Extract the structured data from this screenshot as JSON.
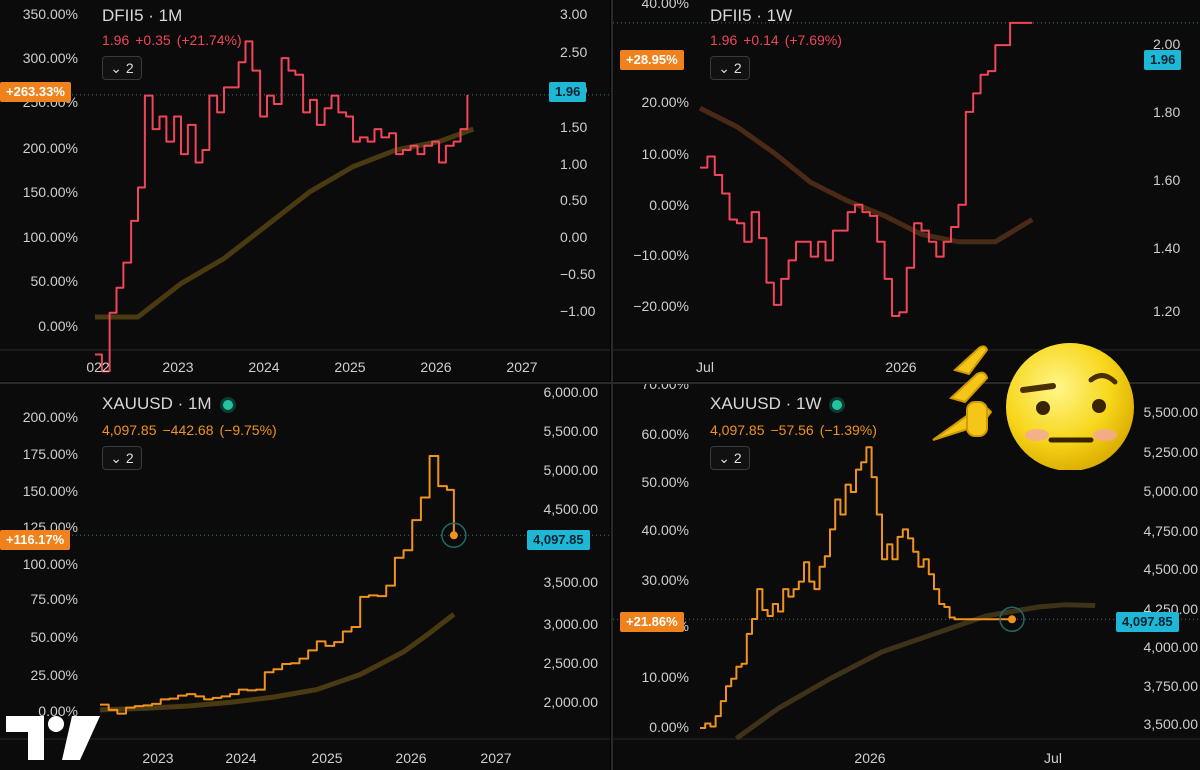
{
  "panels": [
    {
      "id": "dfii5-1m",
      "title": "DFII5 · 1M",
      "quote": {
        "last": "1.96",
        "change": "+0.35",
        "change_pct": "(+21.74%)",
        "color": "#f0455a"
      },
      "compare_button": "2",
      "live_dot": false,
      "pct_tag": "+263.33%",
      "price_tag": "1.96",
      "left_ticks": [
        "350.00%",
        "300.00%",
        "250.00%",
        "200.00%",
        "150.00%",
        "100.00%",
        "50.00%",
        "0.00%"
      ],
      "right_ticks": [
        "3.00",
        "2.50",
        "2.00",
        "1.50",
        "1.00",
        "0.50",
        "0.00",
        "−0.50",
        "−1.00"
      ],
      "x_ticks": [
        "022",
        "2023",
        "2024",
        "2025",
        "2026",
        "2027"
      ],
      "chart_data": {
        "type": "line",
        "y_axis_right": {
          "min": -1.0,
          "max": 3.0
        },
        "series": [
          {
            "color": "#f0455a",
            "shape": "step",
            "x": [
              2022.0,
              2022.08,
              2022.17,
              2022.25,
              2022.33,
              2022.42,
              2022.5,
              2022.58,
              2022.67,
              2022.75,
              2022.83,
              2022.92,
              2023.0,
              2023.08,
              2023.17,
              2023.25,
              2023.33,
              2023.42,
              2023.5,
              2023.58,
              2023.67,
              2023.75,
              2023.83,
              2023.92,
              2024.0,
              2024.08,
              2024.17,
              2024.25,
              2024.33,
              2024.42,
              2024.5,
              2024.58,
              2024.67,
              2024.75,
              2024.83,
              2024.92,
              2025.0,
              2025.08,
              2025.17,
              2025.25,
              2025.33,
              2025.42,
              2025.5,
              2025.58,
              2025.67,
              2025.75,
              2025.83,
              2025.92,
              2026.0,
              2026.08,
              2026.17,
              2026.25,
              2026.33
            ],
            "y": [
              -1.15,
              -1.35,
              -0.65,
              -0.35,
              -0.05,
              0.45,
              0.85,
              1.95,
              1.55,
              1.7,
              1.4,
              1.7,
              1.25,
              1.6,
              1.15,
              1.3,
              1.95,
              1.75,
              2.05,
              2.05,
              2.35,
              2.6,
              2.25,
              1.7,
              1.95,
              1.85,
              2.4,
              2.25,
              2.2,
              1.75,
              1.9,
              1.6,
              1.8,
              1.95,
              1.75,
              1.7,
              1.4,
              1.45,
              1.4,
              1.55,
              1.45,
              1.5,
              1.25,
              1.3,
              1.35,
              1.25,
              1.35,
              1.4,
              1.15,
              1.35,
              1.4,
              1.55,
              1.96
            ]
          },
          {
            "color": "#4a3a12",
            "shape": "smooth",
            "x": [
              2022.0,
              2022.5,
              2023.0,
              2023.5,
              2024.0,
              2024.5,
              2025.0,
              2025.5,
              2026.0,
              2026.4
            ],
            "y": [
              -0.7,
              -0.7,
              -0.3,
              0.0,
              0.4,
              0.8,
              1.1,
              1.3,
              1.4,
              1.55
            ]
          }
        ]
      }
    },
    {
      "id": "dfii5-1w",
      "title": "DFII5 · 1W",
      "quote": {
        "last": "1.96",
        "change": "+0.14",
        "change_pct": "(+7.69%)",
        "color": "#f0455a"
      },
      "compare_button": "2",
      "live_dot": false,
      "pct_tag": "+28.95%",
      "price_tag": "1.96",
      "left_ticks": [
        "40.00%",
        "20.00%",
        "10.00%",
        "0.00%",
        "−10.00%",
        "−20.00%"
      ],
      "right_ticks": [
        "2.00",
        "1.80",
        "1.60",
        "1.40",
        "1.20"
      ],
      "x_ticks": [
        "Jul",
        "2026"
      ],
      "chart_data": {
        "type": "line",
        "y_axis_right": {
          "min": 1.1,
          "max": 2.0
        },
        "series": [
          {
            "color": "#f0455a",
            "shape": "step",
            "x": [
              0,
              2,
              4,
              6,
              8,
              10,
              12,
              14,
              16,
              18,
              20,
              22,
              24,
              26,
              28,
              30,
              32,
              34,
              36,
              38,
              40,
              42,
              44,
              46,
              48,
              50,
              52,
              54,
              56,
              58,
              60,
              62,
              64,
              66,
              68,
              70,
              72,
              74,
              76,
              78,
              80,
              82,
              84,
              86,
              88,
              90
            ],
            "y": [
              1.57,
              1.6,
              1.55,
              1.5,
              1.43,
              1.42,
              1.37,
              1.45,
              1.38,
              1.26,
              1.2,
              1.27,
              1.32,
              1.37,
              1.37,
              1.33,
              1.37,
              1.32,
              1.4,
              1.4,
              1.45,
              1.47,
              1.45,
              1.44,
              1.37,
              1.27,
              1.17,
              1.18,
              1.3,
              1.42,
              1.4,
              1.37,
              1.33,
              1.37,
              1.41,
              1.47,
              1.72,
              1.77,
              1.82,
              1.83,
              1.9,
              1.9,
              1.96,
              1.96,
              1.96,
              1.96
            ]
          },
          {
            "color": "#4a2a16",
            "shape": "smooth",
            "x": [
              0,
              10,
              20,
              30,
              40,
              50,
              60,
              70,
              80,
              90
            ],
            "y": [
              1.73,
              1.68,
              1.61,
              1.53,
              1.48,
              1.44,
              1.39,
              1.37,
              1.37,
              1.43
            ]
          }
        ]
      }
    },
    {
      "id": "xauusd-1m",
      "title": "XAUUSD · 1M",
      "quote": {
        "last": "4,097.85",
        "change": "−442.68",
        "change_pct": "(−9.75%)",
        "color": "#f0921e"
      },
      "compare_button": "2",
      "live_dot": true,
      "pct_tag": "+116.17%",
      "price_tag": "4,097.85",
      "left_ticks": [
        "200.00%",
        "175.00%",
        "150.00%",
        "125.00%",
        "100.00%",
        "75.00%",
        "50.00%",
        "25.00%",
        "0.00%"
      ],
      "right_ticks": [
        "6,000.00",
        "5,500.00",
        "5,000.00",
        "4,500.00",
        "3,500.00",
        "3,000.00",
        "2,500.00",
        "2,000.00"
      ],
      "x_ticks": [
        "2023",
        "2024",
        "2025",
        "2026",
        "2027"
      ],
      "chart_data": {
        "type": "line",
        "y_axis_right": {
          "min": 1500,
          "max": 6000
        },
        "series": [
          {
            "color": "#f0921e",
            "shape": "step",
            "x": [
              2022.3,
              2022.4,
              2022.5,
              2022.6,
              2022.7,
              2022.8,
              2022.9,
              2023.0,
              2023.1,
              2023.2,
              2023.3,
              2023.4,
              2023.5,
              2023.6,
              2023.7,
              2023.8,
              2023.9,
              2024.0,
              2024.1,
              2024.2,
              2024.3,
              2024.4,
              2024.5,
              2024.6,
              2024.7,
              2024.8,
              2024.9,
              2025.0,
              2025.1,
              2025.2,
              2025.3,
              2025.4,
              2025.5,
              2025.6,
              2025.7,
              2025.8,
              2025.9,
              2026.0,
              2026.1,
              2026.2,
              2026.3,
              2026.38
            ],
            "y": [
              1850,
              1780,
              1730,
              1810,
              1830,
              1840,
              1860,
              1920,
              1930,
              1970,
              1990,
              1960,
              1920,
              1940,
              1960,
              1990,
              2050,
              2040,
              2050,
              2280,
              2320,
              2390,
              2400,
              2460,
              2570,
              2690,
              2630,
              2680,
              2820,
              2880,
              3280,
              3300,
              3290,
              3430,
              3800,
              3900,
              4300,
              4600,
              5150,
              4750,
              4700,
              4098
            ]
          },
          {
            "color": "#4a3a12",
            "shape": "smooth",
            "x": [
              2022.3,
              2022.8,
              2023.3,
              2023.8,
              2024.3,
              2024.8,
              2025.3,
              2025.8,
              2026.1,
              2026.38
            ],
            "y": [
              1780,
              1800,
              1830,
              1880,
              1950,
              2050,
              2250,
              2550,
              2800,
              3050
            ]
          }
        ]
      }
    },
    {
      "id": "xauusd-1w",
      "title": "XAUUSD · 1W",
      "quote": {
        "last": "4,097.85",
        "change": "−57.56",
        "change_pct": "(−1.39%)",
        "color": "#f0921e"
      },
      "compare_button": "2",
      "live_dot": true,
      "pct_tag": "+21.86%",
      "price_tag": "4,097.85",
      "left_ticks": [
        "70.00%",
        "60.00%",
        "50.00%",
        "40.00%",
        "30.00%",
        "20.00%",
        "10.00%",
        "0.00%"
      ],
      "right_ticks": [
        "5,500.00",
        "5,250.00",
        "5,000.00",
        "4,750.00",
        "4,500.00",
        "4,250.00",
        "4,000.00",
        "3,750.00",
        "3,500.00"
      ],
      "x_ticks": [
        "2026",
        "Jul"
      ],
      "chart_data": {
        "type": "line",
        "y_axis_right": {
          "min": 3350,
          "max": 5620
        },
        "series": [
          {
            "color": "#f0921e",
            "shape": "step",
            "x": [
              0,
              2,
              4,
              6,
              8,
              10,
              12,
              14,
              16,
              18,
              20,
              22,
              24,
              26,
              28,
              30,
              32,
              34,
              36,
              38,
              40,
              42,
              44,
              46,
              48,
              50,
              52,
              54,
              56,
              58,
              60,
              62,
              64,
              66,
              68,
              70,
              72,
              74,
              76,
              78,
              80,
              82,
              84,
              86,
              88,
              90,
              92,
              94,
              96,
              98,
              100,
              102,
              104,
              106,
              108,
              110,
              112,
              114,
              116,
              118,
              120
            ],
            "y": [
              3370,
              3400,
              3380,
              3450,
              3550,
              3650,
              3700,
              3780,
              3800,
              4000,
              4100,
              4300,
              4160,
              4120,
              4200,
              4150,
              4300,
              4250,
              4300,
              4350,
              4480,
              4350,
              4300,
              4450,
              4520,
              4700,
              4900,
              4800,
              5000,
              4950,
              5100,
              5150,
              5250,
              5050,
              4800,
              4500,
              4600,
              4500,
              4650,
              4700,
              4640,
              4550,
              4450,
              4500,
              4400,
              4300,
              4200,
              4180,
              4110,
              4098,
              4098,
              4098,
              4098,
              4098,
              4098,
              4098,
              4098,
              4098,
              4098,
              4098,
              4098
            ]
          },
          {
            "color": "#3e3218",
            "shape": "smooth",
            "x": [
              14,
              30,
              50,
              70,
              90,
              110,
              130,
              140,
              152
            ],
            "y": [
              3300,
              3500,
              3700,
              3880,
              4000,
              4120,
              4180,
              4195,
              4190
            ]
          }
        ]
      }
    }
  ],
  "branding": {
    "logo": "tradingview-logo-icon"
  },
  "overlay": {
    "emoji": "thinking-face-pointing-icon"
  }
}
